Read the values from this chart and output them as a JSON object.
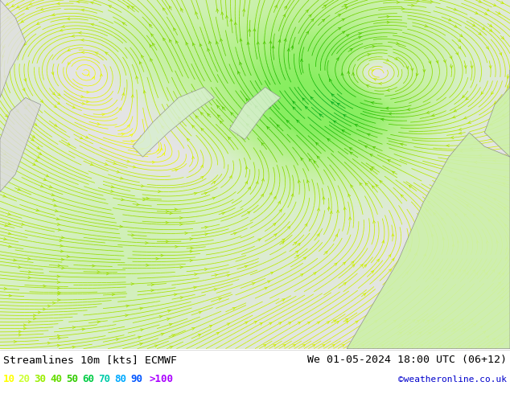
{
  "title_left": "Streamlines 10m [kts] ECMWF",
  "title_right": "We 01-05-2024 18:00 UTC (06+12)",
  "credit": "©weatheronline.co.uk",
  "legend_values": [
    "10",
    "20",
    "30",
    "40",
    "50",
    "60",
    "70",
    "80",
    "90",
    ">100"
  ],
  "legend_colors": [
    "#ffff00",
    "#ccff33",
    "#99ee00",
    "#66dd00",
    "#33cc00",
    "#00cc44",
    "#00ccaa",
    "#00aaff",
    "#0055ff",
    "#aa00ff"
  ],
  "bg_color": "#ffffff",
  "ocean_color": "#e8e8e8",
  "land_high_color": "#ccffaa",
  "fig_width": 6.34,
  "fig_height": 4.9,
  "dpi": 100,
  "title_fontsize": 9.5,
  "credit_color": "#0000cc",
  "credit_fontsize": 8,
  "legend_fontsize": 9
}
